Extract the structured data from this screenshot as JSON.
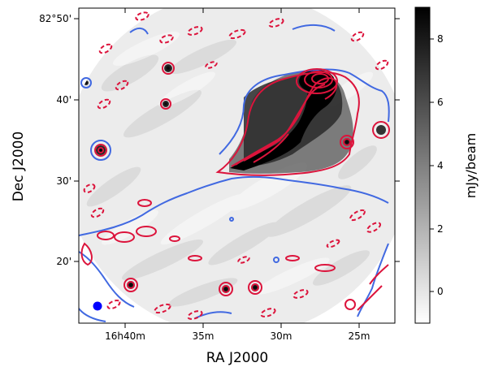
{
  "chart_data": {
    "type": "heatmap",
    "title": "",
    "xlabel": "RA J2000",
    "ylabel": "Dec J2000",
    "x_ticks": [
      "16h40m",
      "35m",
      "30m",
      "25m"
    ],
    "y_ticks": [
      "82°50'",
      "40'",
      "30'",
      "20'"
    ],
    "colorbar": {
      "label": "mJy/beam",
      "ticks": [
        "0",
        "2",
        "4",
        "6",
        "8"
      ],
      "range": [
        -1,
        9
      ],
      "colormap": "gray_r"
    },
    "contour_colors": {
      "radio": "#dc143c",
      "outline": "#4169e1"
    },
    "beam_color": "#0000ff"
  }
}
